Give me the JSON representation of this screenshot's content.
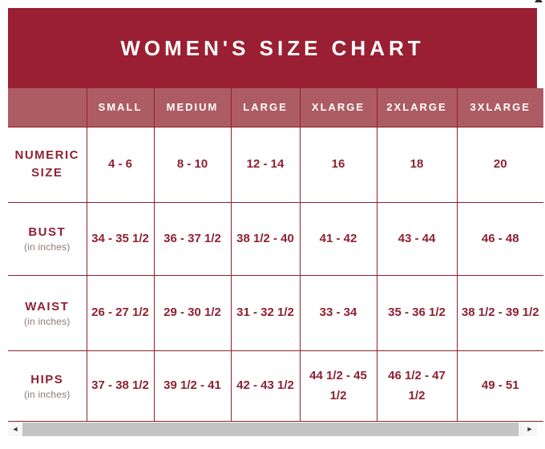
{
  "chart_data": {
    "type": "table",
    "title": "WOMEN'S SIZE CHART",
    "column_headers": [
      "SMALL",
      "MEDIUM",
      "LARGE",
      "XLARGE",
      "2XLARGE",
      "3XLARGE"
    ],
    "rows": [
      {
        "label": "NUMERIC SIZE",
        "sublabel": "",
        "values": [
          "4 - 6",
          "8 - 10",
          "12 - 14",
          "16",
          "18",
          "20"
        ]
      },
      {
        "label": "BUST",
        "sublabel": "(in inches)",
        "values": [
          "34 - 35 1/2",
          "36 - 37 1/2",
          "38 1/2 - 40",
          "41 - 42",
          "43 - 44",
          "46 - 48"
        ]
      },
      {
        "label": "WAIST",
        "sublabel": "(in inches)",
        "values": [
          "26 - 27 1/2",
          "29 - 30 1/2",
          "31 - 32 1/2",
          "33 - 34",
          "35 - 36 1/2",
          "38 1/2 - 39 1/2"
        ]
      },
      {
        "label": "HIPS",
        "sublabel": "(in inches)",
        "values": [
          "37 - 38 1/2",
          "39 1/2 - 41",
          "42 - 43 1/2",
          "44 1/2 - 45 1/2",
          "46 1/2 - 47 1/2",
          "49 - 51"
        ]
      }
    ]
  },
  "scrollbar": {
    "left_arrow_icon": "◄",
    "right_arrow_icon": "►"
  },
  "colors": {
    "banner_bg": "#9a1f33",
    "header_row_bg": "#ae5c63",
    "table_border": "#8e2030",
    "cell_text": "#8e2133",
    "sublabel_text": "#8b7b76",
    "scrollbar_thumb": "#c3c3c3",
    "scrollbar_track": "#f3f3f3"
  }
}
